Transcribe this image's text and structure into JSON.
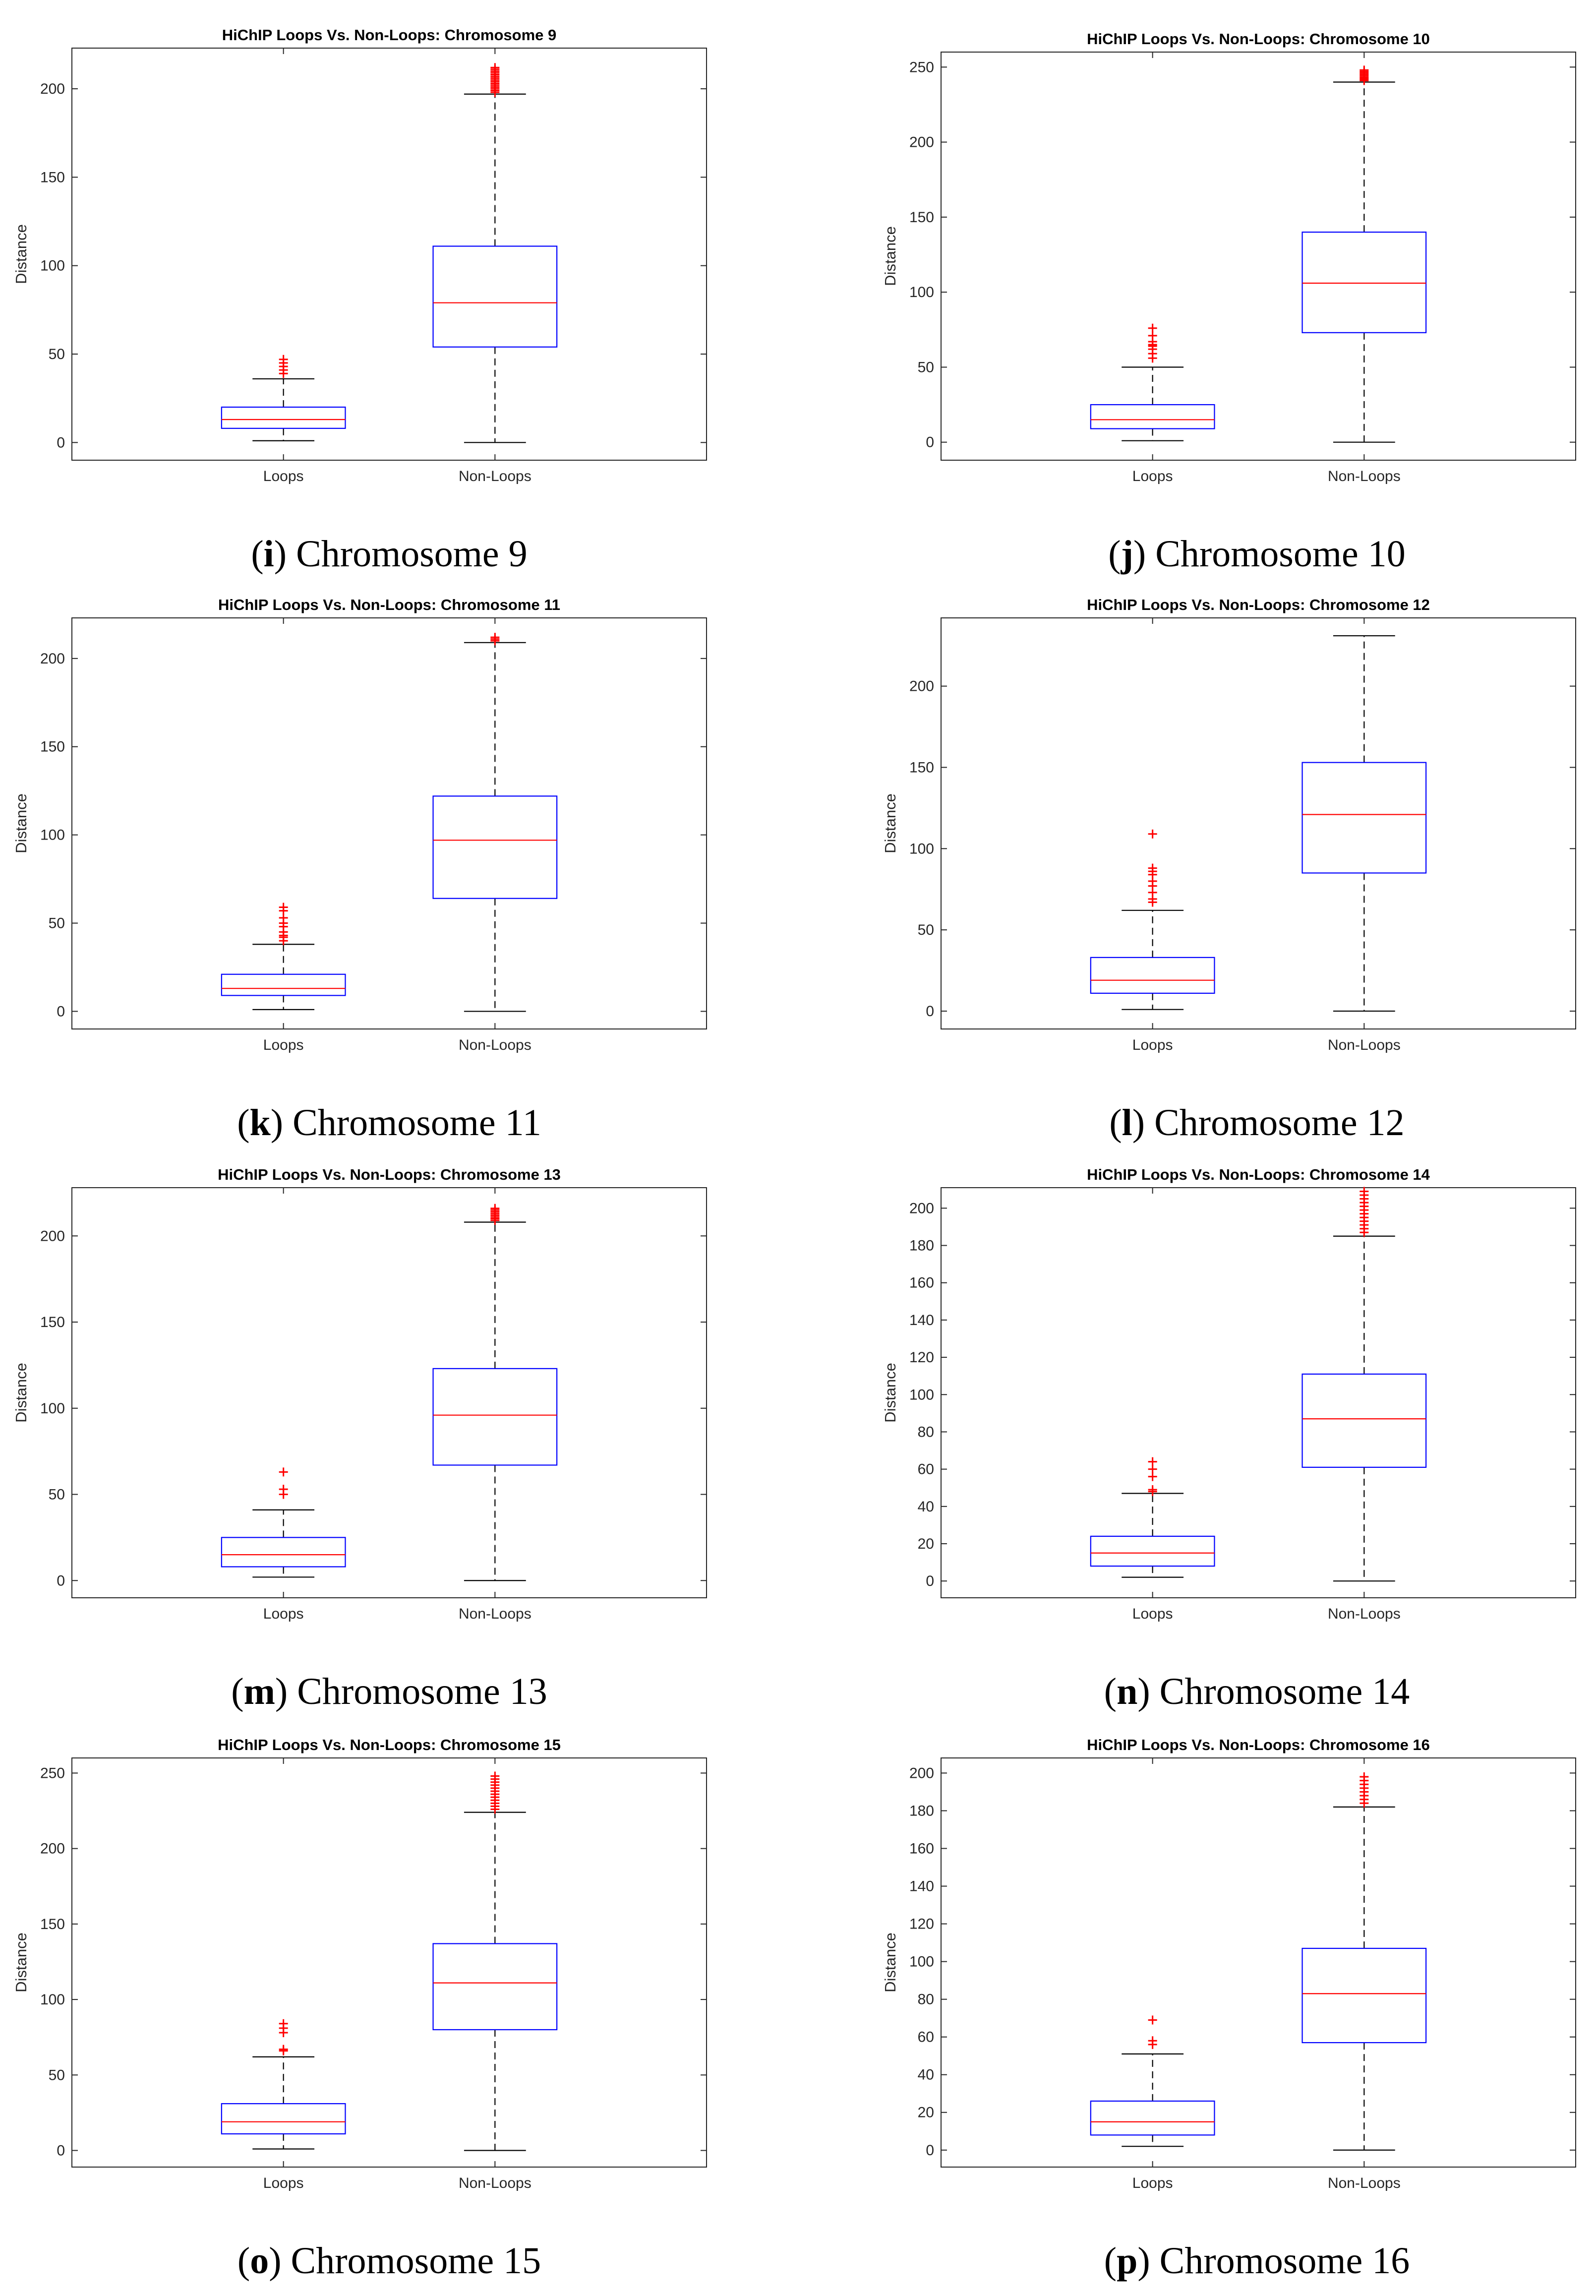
{
  "colors": {
    "box": "#0000ff",
    "median": "#ff0000",
    "outlier": "#ff0000",
    "whisker": "#000000",
    "axis": "#262626",
    "text": "#000000"
  },
  "chart_data": [
    {
      "type": "box",
      "title": "HiChIP Loops Vs. Non-Loops: Chromosome 9",
      "caption_letter": "i",
      "caption_text": " Chromosome 9",
      "xlabel": "",
      "ylabel": "Distance",
      "categories": [
        "Loops",
        "Non-Loops"
      ],
      "ylim": [
        -10,
        223
      ],
      "yticks": [
        0,
        50,
        100,
        150,
        200
      ],
      "boxes": [
        {
          "name": "Loops",
          "whisker_low": 1,
          "q1": 8,
          "median": 13,
          "q3": 20,
          "whisker_high": 36,
          "outliers": [
            39,
            41,
            43,
            45,
            47
          ]
        },
        {
          "name": "Non-Loops",
          "whisker_low": 0,
          "q1": 54,
          "median": 79,
          "q3": 111,
          "whisker_high": 197,
          "outliers": [
            198,
            199,
            200,
            201,
            202,
            203,
            204,
            205,
            206,
            207,
            208,
            209,
            210,
            211,
            212
          ]
        }
      ]
    },
    {
      "type": "box",
      "title": "HiChIP Loops Vs. Non-Loops: Chromosome 10",
      "caption_letter": "j",
      "caption_text": " Chromosome 10",
      "xlabel": "",
      "ylabel": "Distance",
      "categories": [
        "Loops",
        "Non-Loops"
      ],
      "ylim": [
        -12,
        260
      ],
      "yticks": [
        0,
        50,
        100,
        150,
        200,
        250
      ],
      "boxes": [
        {
          "name": "Loops",
          "whisker_low": 1,
          "q1": 9,
          "median": 15,
          "q3": 25,
          "whisker_high": 50,
          "outliers": [
            56,
            59,
            62,
            64,
            65,
            67,
            71,
            76
          ]
        },
        {
          "name": "Non-Loops",
          "whisker_low": 0,
          "q1": 73,
          "median": 106,
          "q3": 140,
          "whisker_high": 240,
          "outliers": [
            241,
            242,
            243,
            244,
            245,
            246,
            247,
            248
          ]
        }
      ]
    },
    {
      "type": "box",
      "title": "HiChIP Loops Vs. Non-Loops: Chromosome 11",
      "caption_letter": "k",
      "caption_text": " Chromosome 11",
      "xlabel": "",
      "ylabel": "Distance",
      "categories": [
        "Loops",
        "Non-Loops"
      ],
      "ylim": [
        -10,
        223
      ],
      "yticks": [
        0,
        50,
        100,
        150,
        200
      ],
      "boxes": [
        {
          "name": "Loops",
          "whisker_low": 1,
          "q1": 9,
          "median": 13,
          "q3": 21,
          "whisker_high": 38,
          "outliers": [
            40,
            42,
            43,
            45,
            48,
            50,
            53,
            57,
            59
          ]
        },
        {
          "name": "Non-Loops",
          "whisker_low": 0,
          "q1": 64,
          "median": 97,
          "q3": 122,
          "whisker_high": 209,
          "outliers": [
            210,
            211,
            212
          ]
        }
      ]
    },
    {
      "type": "box",
      "title": "HiChIP Loops Vs. Non-Loops: Chromosome 12",
      "caption_letter": "l",
      "caption_text": " Chromosome 12",
      "xlabel": "",
      "ylabel": "Distance",
      "categories": [
        "Loops",
        "Non-Loops"
      ],
      "ylim": [
        -11,
        242
      ],
      "yticks": [
        0,
        50,
        100,
        150,
        200
      ],
      "boxes": [
        {
          "name": "Loops",
          "whisker_low": 1,
          "q1": 11,
          "median": 19,
          "q3": 33,
          "whisker_high": 62,
          "outliers": [
            67,
            69,
            73,
            77,
            80,
            84,
            86,
            88,
            109
          ]
        },
        {
          "name": "Non-Loops",
          "whisker_low": 0,
          "q1": 85,
          "median": 121,
          "q3": 153,
          "whisker_high": 231,
          "outliers": []
        }
      ]
    },
    {
      "type": "box",
      "title": "HiChIP Loops Vs. Non-Loops: Chromosome 13",
      "caption_letter": "m",
      "caption_text": " Chromosome 13",
      "xlabel": "",
      "ylabel": "Distance",
      "categories": [
        "Loops",
        "Non-Loops"
      ],
      "ylim": [
        -10,
        228
      ],
      "yticks": [
        0,
        50,
        100,
        150,
        200
      ],
      "boxes": [
        {
          "name": "Loops",
          "whisker_low": 2,
          "q1": 8,
          "median": 15,
          "q3": 25,
          "whisker_high": 41,
          "outliers": [
            50,
            53,
            63
          ]
        },
        {
          "name": "Non-Loops",
          "whisker_low": 0,
          "q1": 67,
          "median": 96,
          "q3": 123,
          "whisker_high": 208,
          "outliers": [
            209,
            210,
            211,
            212,
            213,
            214,
            215,
            216
          ]
        }
      ]
    },
    {
      "type": "box",
      "title": "HiChIP Loops Vs. Non-Loops: Chromosome 14",
      "caption_letter": "n",
      "caption_text": " Chromosome 14",
      "xlabel": "",
      "ylabel": "Distance",
      "categories": [
        "Loops",
        "Non-Loops"
      ],
      "ylim": [
        -9,
        211
      ],
      "yticks": [
        0,
        20,
        40,
        60,
        80,
        100,
        120,
        140,
        160,
        180,
        200
      ],
      "boxes": [
        {
          "name": "Loops",
          "whisker_low": 2,
          "q1": 8,
          "median": 15,
          "q3": 24,
          "whisker_high": 47,
          "outliers": [
            48,
            49,
            56,
            60,
            64
          ]
        },
        {
          "name": "Non-Loops",
          "whisker_low": 0,
          "q1": 61,
          "median": 87,
          "q3": 111,
          "whisker_high": 185,
          "outliers": [
            187,
            189,
            191,
            193,
            195,
            197,
            199,
            201,
            203,
            205,
            207,
            209
          ]
        }
      ]
    },
    {
      "type": "box",
      "title": "HiChIP Loops Vs. Non-Loops: Chromosome 15",
      "caption_letter": "o",
      "caption_text": " Chromosome 15",
      "xlabel": "",
      "ylabel": "Distance",
      "categories": [
        "Loops",
        "Non-Loops"
      ],
      "ylim": [
        -11,
        260
      ],
      "yticks": [
        0,
        50,
        100,
        150,
        200,
        250
      ],
      "boxes": [
        {
          "name": "Loops",
          "whisker_low": 1,
          "q1": 11,
          "median": 19,
          "q3": 31,
          "whisker_high": 62,
          "outliers": [
            66,
            67,
            78,
            81,
            84
          ]
        },
        {
          "name": "Non-Loops",
          "whisker_low": 0,
          "q1": 80,
          "median": 111,
          "q3": 137,
          "whisker_high": 224,
          "outliers": [
            226,
            228,
            230,
            232,
            234,
            236,
            238,
            240,
            242,
            244,
            246,
            248
          ]
        }
      ]
    },
    {
      "type": "box",
      "title": "HiChIP Loops Vs. Non-Loops: Chromosome 16",
      "caption_letter": "p",
      "caption_text": " Chromosome 16",
      "xlabel": "",
      "ylabel": "Distance",
      "categories": [
        "Loops",
        "Non-Loops"
      ],
      "ylim": [
        -9,
        208
      ],
      "yticks": [
        0,
        20,
        40,
        60,
        80,
        100,
        120,
        140,
        160,
        180,
        200
      ],
      "boxes": [
        {
          "name": "Loops",
          "whisker_low": 2,
          "q1": 8,
          "median": 15,
          "q3": 26,
          "whisker_high": 51,
          "outliers": [
            56,
            58,
            69
          ]
        },
        {
          "name": "Non-Loops",
          "whisker_low": 0,
          "q1": 57,
          "median": 83,
          "q3": 107,
          "whisker_high": 182,
          "outliers": [
            184,
            186,
            188,
            190,
            192,
            194,
            196,
            198
          ]
        }
      ]
    }
  ]
}
